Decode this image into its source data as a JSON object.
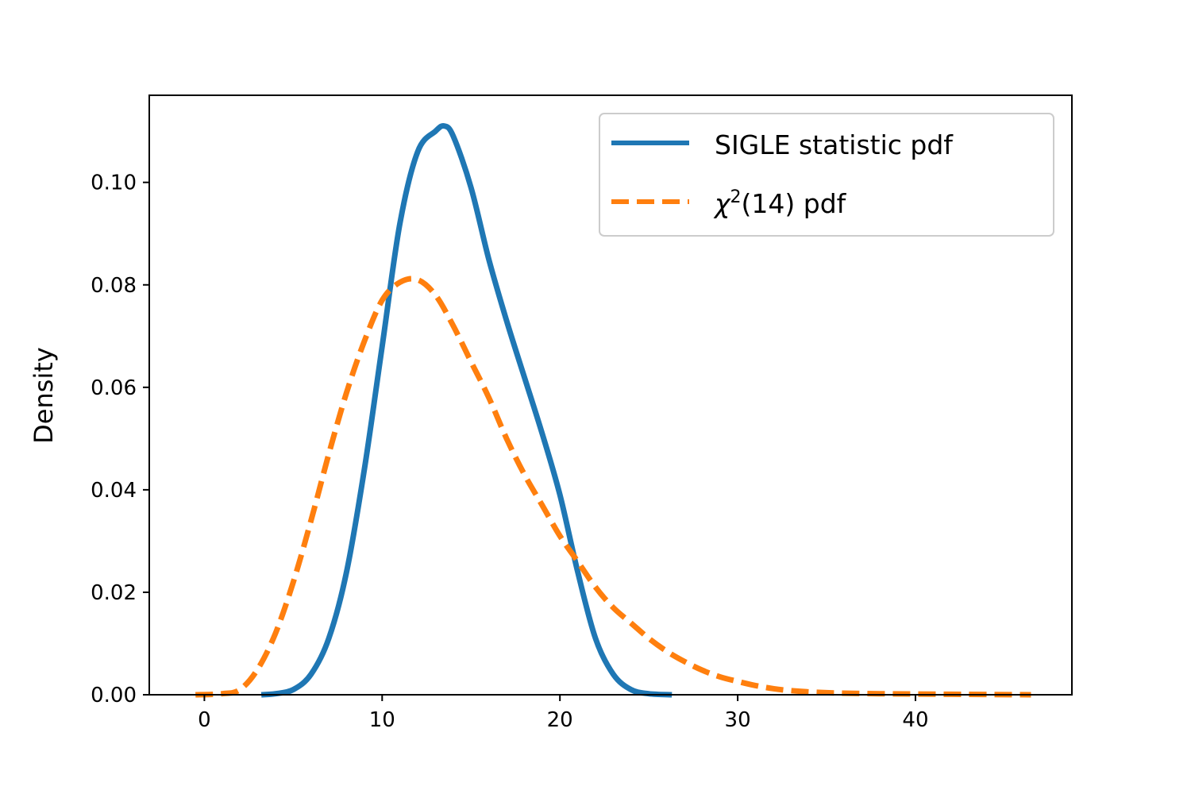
{
  "chart_data": {
    "type": "line",
    "title": "",
    "xlabel": "",
    "ylabel": "Density",
    "xlim": [
      -3.1,
      48.8
    ],
    "ylim": [
      0,
      0.117
    ],
    "x_ticks": [
      0,
      10,
      20,
      30,
      40
    ],
    "x_tick_labels": [
      "0",
      "10",
      "20",
      "30",
      "40"
    ],
    "y_ticks": [
      0.0,
      0.02,
      0.04,
      0.06,
      0.08,
      0.1
    ],
    "y_tick_labels": [
      "0.00",
      "0.02",
      "0.04",
      "0.06",
      "0.08",
      "0.10"
    ],
    "grid": false,
    "legend_position": "top-right",
    "series": [
      {
        "name": "SIGLE statistic pdf",
        "style": "solid",
        "color": "#1f77b4",
        "x": [
          3.2,
          4,
          5,
          6,
          7,
          8,
          9,
          10,
          11,
          12,
          13,
          13.5,
          14,
          15,
          16,
          17,
          18,
          19,
          20,
          21,
          22,
          23,
          24,
          25,
          26.3
        ],
        "y": [
          0.0,
          0.0002,
          0.001,
          0.004,
          0.011,
          0.024,
          0.044,
          0.068,
          0.092,
          0.106,
          0.11,
          0.111,
          0.109,
          0.099,
          0.085,
          0.073,
          0.062,
          0.051,
          0.039,
          0.024,
          0.011,
          0.004,
          0.001,
          0.0002,
          0.0
        ]
      },
      {
        "name": "χ²(14) pdf",
        "legend_base": "χ",
        "legend_sup": "2",
        "legend_rest": "(14) pdf",
        "style": "dashed",
        "color": "#ff7f0e",
        "x": [
          -0.5,
          1,
          2,
          3,
          4,
          5,
          6,
          7,
          8,
          9,
          10,
          11,
          12,
          13,
          14,
          15,
          16,
          17,
          18,
          19,
          20,
          21,
          22,
          23,
          24,
          25,
          26,
          27,
          28,
          29,
          30,
          31,
          32,
          33,
          35,
          38,
          42,
          46.5
        ],
        "y": [
          0.0,
          0.0002,
          0.001,
          0.005,
          0.012,
          0.022,
          0.034,
          0.047,
          0.059,
          0.069,
          0.077,
          0.0805,
          0.081,
          0.078,
          0.072,
          0.065,
          0.058,
          0.05,
          0.043,
          0.037,
          0.031,
          0.026,
          0.021,
          0.017,
          0.014,
          0.011,
          0.0085,
          0.0065,
          0.0048,
          0.0035,
          0.0026,
          0.0018,
          0.0012,
          0.0008,
          0.0004,
          0.0002,
          0.0001,
          0.0
        ]
      }
    ]
  }
}
